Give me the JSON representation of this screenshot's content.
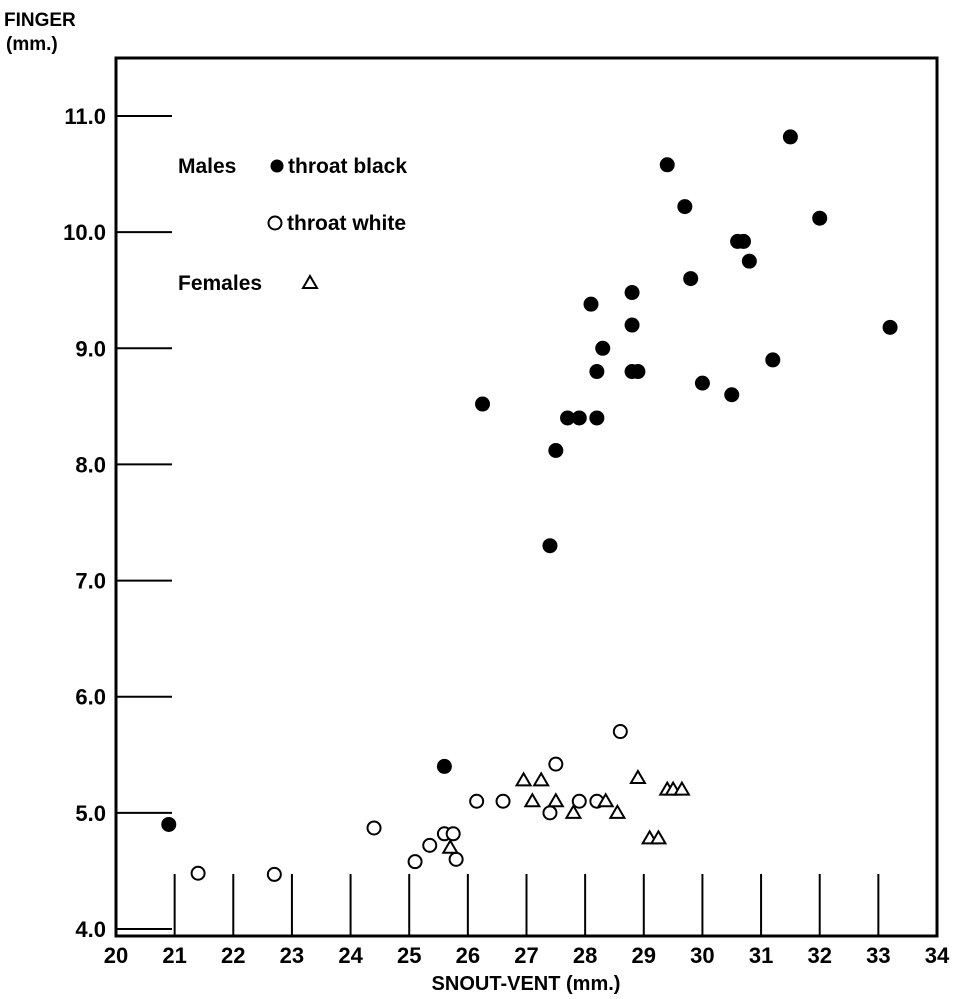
{
  "chart_data": {
    "type": "scatter",
    "title": "",
    "ylabel": [
      "FINGER",
      "(mm.)"
    ],
    "xlabel": "SNOUT-VENT (mm.)",
    "xlim": [
      20,
      34
    ],
    "ylim": [
      4.0,
      11.5
    ],
    "x_ticks": [
      {
        "v": 20,
        "label": "20"
      },
      {
        "v": 21,
        "label": "21"
      },
      {
        "v": 22,
        "label": "22"
      },
      {
        "v": 23,
        "label": "23"
      },
      {
        "v": 24,
        "label": "24"
      },
      {
        "v": 25,
        "label": "25"
      },
      {
        "v": 26,
        "label": "26"
      },
      {
        "v": 27,
        "label": "27"
      },
      {
        "v": 28,
        "label": "28"
      },
      {
        "v": 29,
        "label": "29"
      },
      {
        "v": 30,
        "label": "30"
      },
      {
        "v": 31,
        "label": "31"
      },
      {
        "v": 32,
        "label": "32"
      },
      {
        "v": 33,
        "label": "33"
      },
      {
        "v": 34,
        "label": "34"
      }
    ],
    "y_ticks": [
      {
        "v": 4.0,
        "label": "4.0"
      },
      {
        "v": 5.0,
        "label": "5.0"
      },
      {
        "v": 6.0,
        "label": "6.0"
      },
      {
        "v": 7.0,
        "label": "7.0"
      },
      {
        "v": 8.0,
        "label": "8.0"
      },
      {
        "v": 9.0,
        "label": "9.0"
      },
      {
        "v": 10.0,
        "label": "10.0"
      },
      {
        "v": 11.0,
        "label": "11.0"
      }
    ],
    "grid": false,
    "legend": {
      "group_males": "Males",
      "group_females": "Females",
      "entries": [
        {
          "marker": "filled-circle",
          "label": "throat black"
        },
        {
          "marker": "open-circle",
          "label": "throat white"
        },
        {
          "marker": "open-triangle",
          "label": ""
        }
      ]
    },
    "series": [
      {
        "name": "throat black",
        "marker": "filled-circle",
        "points": [
          [
            20.9,
            4.9
          ],
          [
            25.6,
            5.4
          ],
          [
            26.25,
            8.52
          ],
          [
            27.4,
            7.3
          ],
          [
            27.5,
            8.12
          ],
          [
            27.7,
            8.4
          ],
          [
            27.9,
            8.4
          ],
          [
            28.2,
            8.4
          ],
          [
            28.1,
            9.38
          ],
          [
            28.2,
            8.8
          ],
          [
            28.3,
            9.0
          ],
          [
            28.8,
            8.8
          ],
          [
            28.9,
            8.8
          ],
          [
            28.8,
            9.48
          ],
          [
            28.8,
            9.2
          ],
          [
            29.4,
            10.58
          ],
          [
            29.7,
            10.22
          ],
          [
            29.8,
            9.6
          ],
          [
            30.0,
            8.7
          ],
          [
            30.5,
            8.6
          ],
          [
            30.6,
            9.92
          ],
          [
            30.7,
            9.92
          ],
          [
            30.8,
            9.75
          ],
          [
            31.2,
            8.9
          ],
          [
            31.5,
            10.82
          ],
          [
            32.0,
            10.12
          ],
          [
            33.2,
            9.18
          ]
        ]
      },
      {
        "name": "throat white",
        "marker": "open-circle",
        "points": [
          [
            21.4,
            4.48
          ],
          [
            22.7,
            4.47
          ],
          [
            24.4,
            4.87
          ],
          [
            25.1,
            4.58
          ],
          [
            25.35,
            4.72
          ],
          [
            25.6,
            4.82
          ],
          [
            25.75,
            4.82
          ],
          [
            25.8,
            4.6
          ],
          [
            26.15,
            5.1
          ],
          [
            26.6,
            5.1
          ],
          [
            27.4,
            5.0
          ],
          [
            27.5,
            5.42
          ],
          [
            27.9,
            5.1
          ],
          [
            28.2,
            5.1
          ],
          [
            28.6,
            5.7
          ]
        ]
      },
      {
        "name": "Females",
        "marker": "open-triangle",
        "points": [
          [
            25.7,
            4.7
          ],
          [
            26.95,
            5.28
          ],
          [
            27.1,
            5.1
          ],
          [
            27.25,
            5.28
          ],
          [
            27.5,
            5.1
          ],
          [
            27.8,
            5.0
          ],
          [
            28.35,
            5.1
          ],
          [
            28.55,
            5.0
          ],
          [
            28.9,
            5.3
          ],
          [
            29.1,
            4.78
          ],
          [
            29.25,
            4.78
          ],
          [
            29.4,
            5.2
          ],
          [
            29.5,
            5.2
          ],
          [
            29.65,
            5.2
          ]
        ]
      }
    ]
  }
}
